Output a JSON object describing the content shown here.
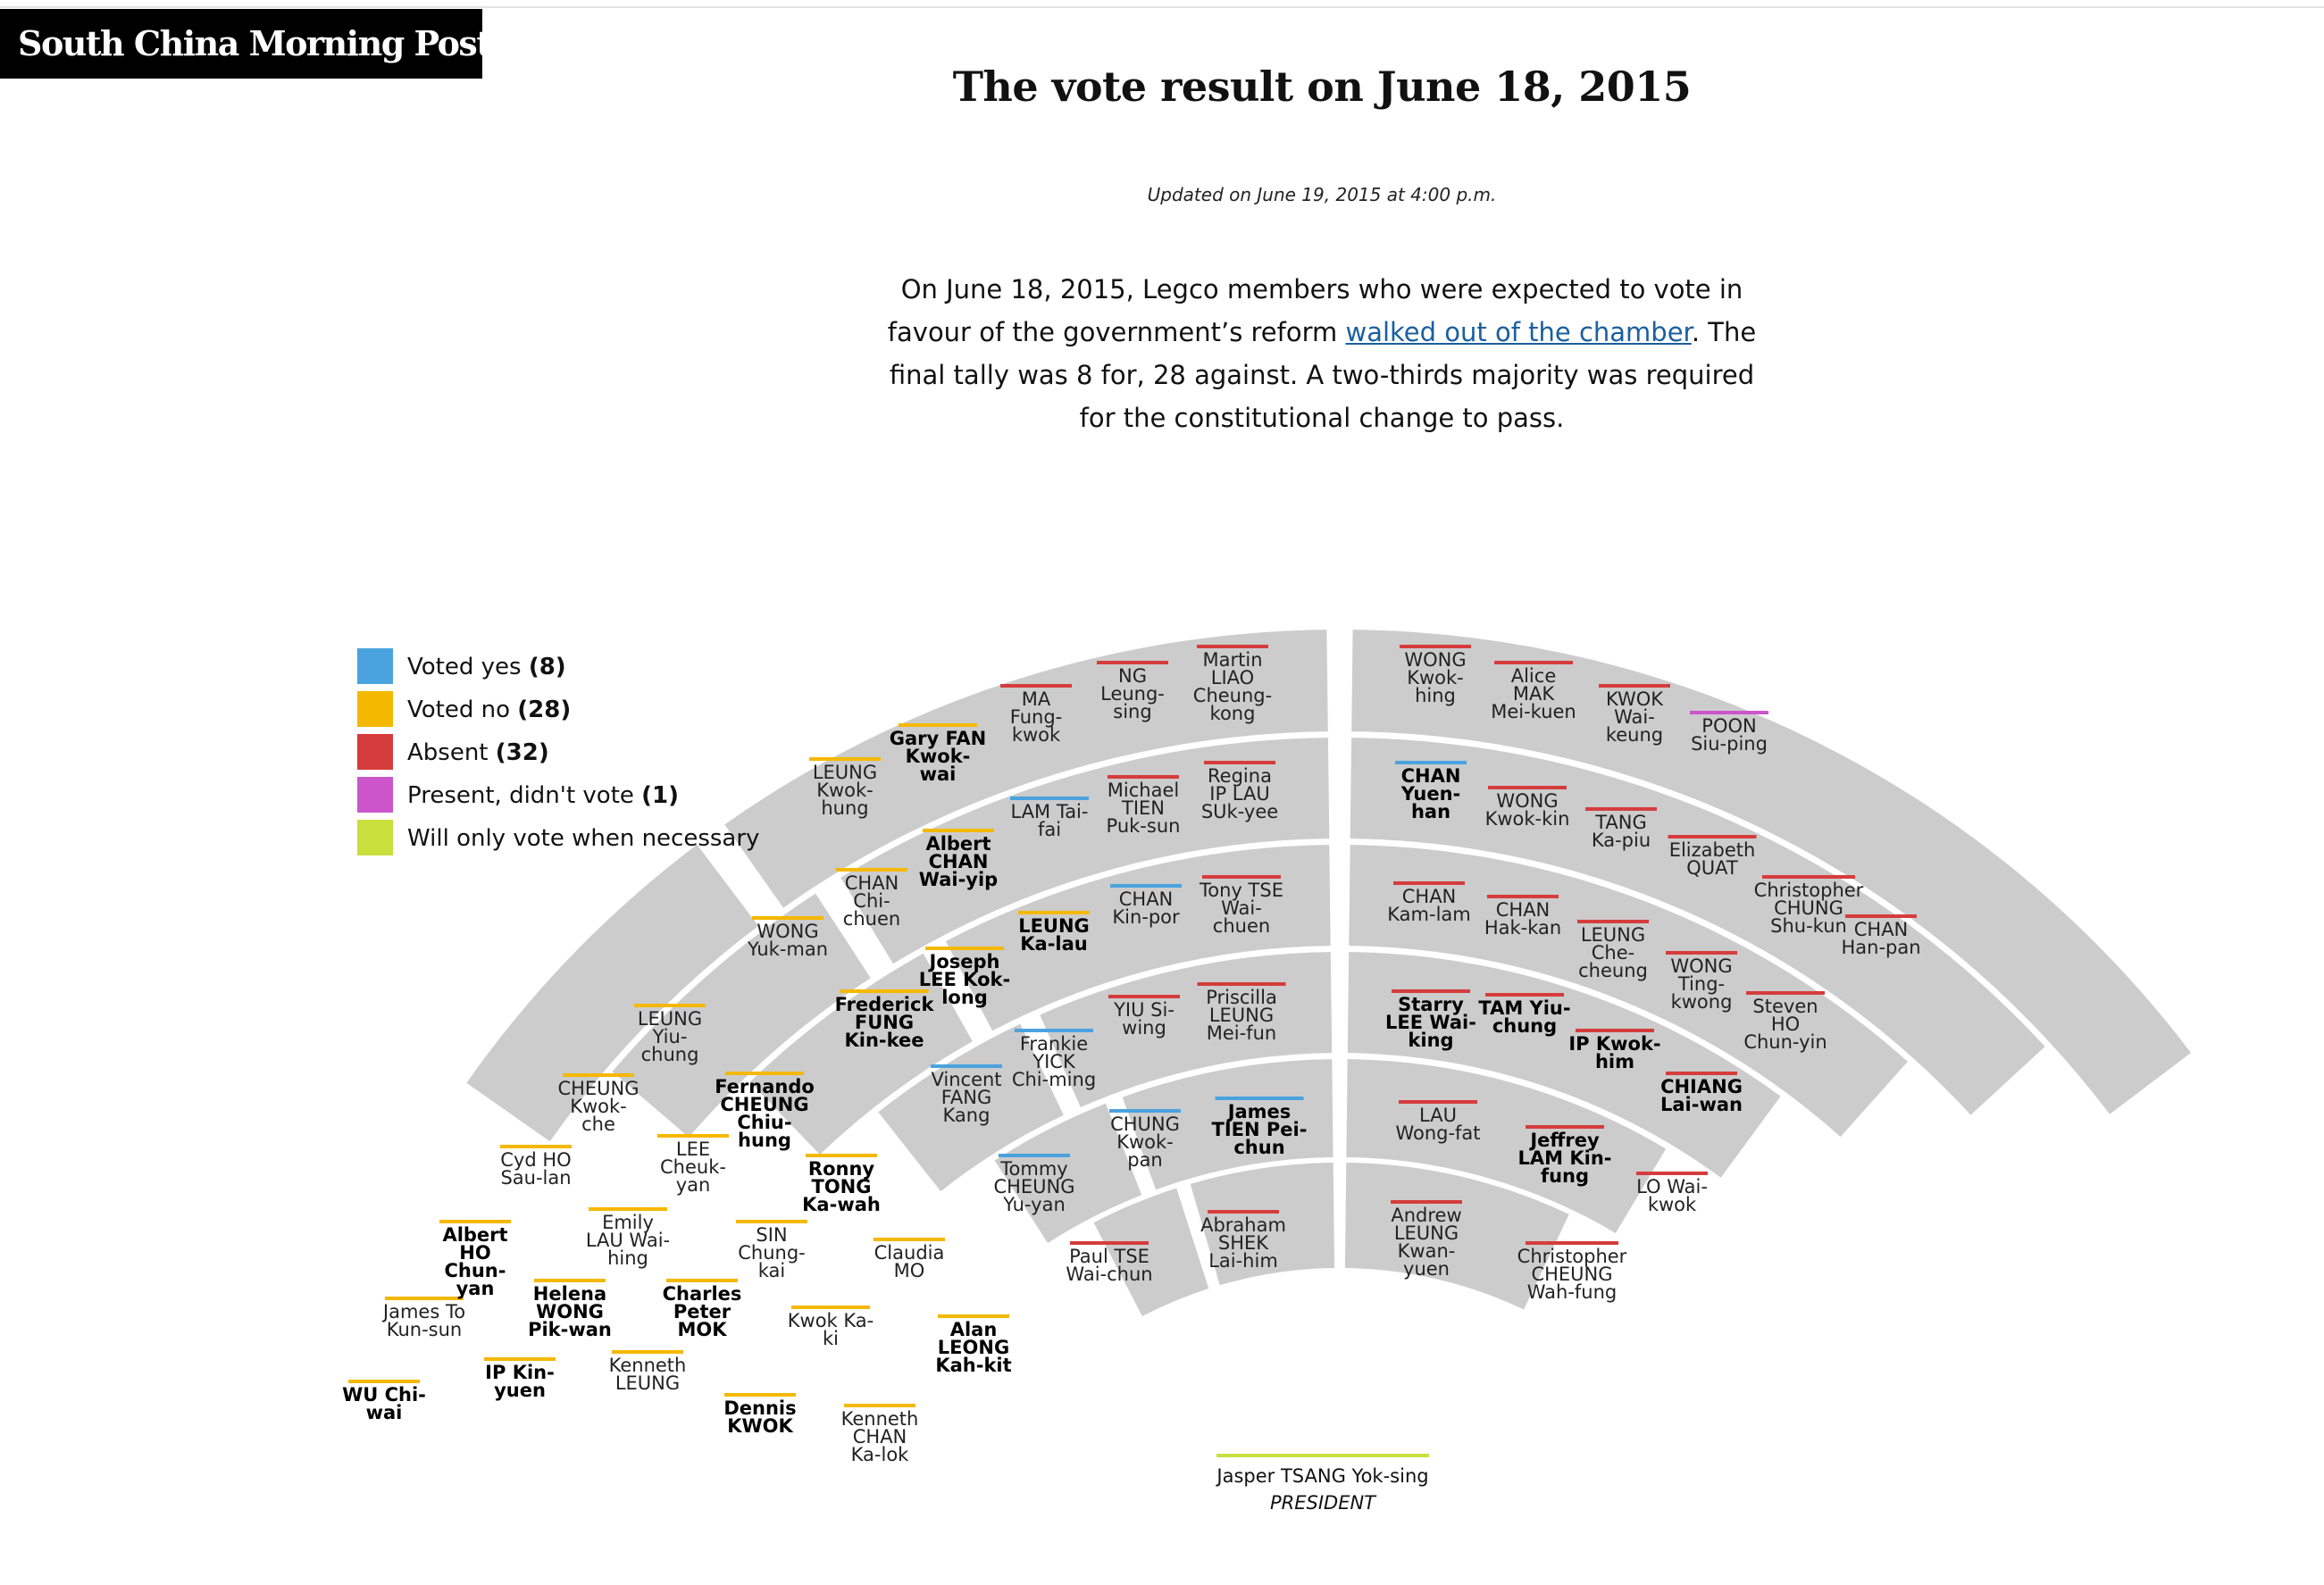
{
  "masthead": "South China Morning Post",
  "title": "The vote result on June 18, 2015",
  "updated": "Updated on June 19, 2015 at 4:00 p.m.",
  "intro": {
    "before": "On June 18, 2015, Legco members who were expected to vote in favour of the government’s reform ",
    "link": "walked out of the chamber",
    "after": ". The final tally was 8 for, 28 against. A two-thirds majority was required for the constitutional change to pass."
  },
  "colors": {
    "yes": "#4aa3df",
    "no": "#f5b800",
    "absent": "#d63c3c",
    "present": "#cc55cc",
    "necessary": "#c8e03c",
    "band": "#cccccc"
  },
  "legend": [
    {
      "label": "Voted yes",
      "count": "(8)",
      "status": "yes"
    },
    {
      "label": "Voted no",
      "count": "(28)",
      "status": "no"
    },
    {
      "label": "Absent",
      "count": "(32)",
      "status": "absent"
    },
    {
      "label": "Present, didn't vote",
      "count": "(1)",
      "status": "present"
    },
    {
      "label": "Will only vote when necessary",
      "count": "",
      "status": "necessary"
    }
  ],
  "president": {
    "name": "Jasper TSANG Yok-sing",
    "role": "PRESIDENT",
    "status": "necessary"
  },
  "members": [
    {
      "lines": [
        "WU Chi-",
        "wai"
      ],
      "status": "no",
      "bold": true
    },
    {
      "lines": [
        "James To",
        "Kun-sun"
      ],
      "status": "no",
      "bold": false
    },
    {
      "lines": [
        "Albert",
        "HO",
        "Chun-",
        "yan"
      ],
      "status": "no",
      "bold": true
    },
    {
      "lines": [
        "Cyd HO",
        "Sau-lan"
      ],
      "status": "no",
      "bold": false
    },
    {
      "lines": [
        "CHEUNG",
        "Kwok-",
        "che"
      ],
      "status": "no",
      "bold": false
    },
    {
      "lines": [
        "LEUNG",
        "Yiu-",
        "chung"
      ],
      "status": "no",
      "bold": false
    },
    {
      "lines": [
        "IP Kin-",
        "yuen"
      ],
      "status": "no",
      "bold": true
    },
    {
      "lines": [
        "Helena",
        "WONG",
        "Pik-wan"
      ],
      "status": "no",
      "bold": true
    },
    {
      "lines": [
        "Emily",
        "LAU Wai-",
        "hing"
      ],
      "status": "no",
      "bold": false
    },
    {
      "lines": [
        "LEE",
        "Cheuk-",
        "yan"
      ],
      "status": "no",
      "bold": false
    },
    {
      "lines": [
        "Fernando",
        "CHEUNG",
        "Chiu-",
        "hung"
      ],
      "status": "no",
      "bold": true
    },
    {
      "lines": [
        "Kenneth",
        "LEUNG"
      ],
      "status": "no",
      "bold": false
    },
    {
      "lines": [
        "Charles",
        "Peter",
        "MOK"
      ],
      "status": "no",
      "bold": true
    },
    {
      "lines": [
        "SIN",
        "Chung-",
        "kai"
      ],
      "status": "no",
      "bold": false
    },
    {
      "lines": [
        "Ronny",
        "TONG",
        "Ka-wah"
      ],
      "status": "no",
      "bold": true
    },
    {
      "lines": [
        "Dennis",
        "KWOK"
      ],
      "status": "no",
      "bold": true
    },
    {
      "lines": [
        "Kwok Ka-",
        "ki"
      ],
      "status": "no",
      "bold": false
    },
    {
      "lines": [
        "Claudia",
        "MO"
      ],
      "status": "no",
      "bold": false
    },
    {
      "lines": [
        "Kenneth",
        "CHAN",
        "Ka-lok"
      ],
      "status": "no",
      "bold": false
    },
    {
      "lines": [
        "Alan",
        "LEONG",
        "Kah-kit"
      ],
      "status": "no",
      "bold": true
    },
    {
      "lines": [
        "LEUNG",
        "Kwok-",
        "hung"
      ],
      "status": "no",
      "bold": false
    },
    {
      "lines": [
        "Gary FAN",
        "Kwok-",
        "wai"
      ],
      "status": "no",
      "bold": true
    },
    {
      "lines": [
        "MA",
        "Fung-",
        "kwok"
      ],
      "status": "absent",
      "bold": false
    },
    {
      "lines": [
        "NG",
        "Leung-",
        "sing"
      ],
      "status": "absent",
      "bold": false
    },
    {
      "lines": [
        "Martin",
        "LIAO",
        "Cheung-",
        "kong"
      ],
      "status": "absent",
      "bold": false
    },
    {
      "lines": [
        "Albert",
        "CHAN",
        "Wai-yip"
      ],
      "status": "no",
      "bold": true
    },
    {
      "lines": [
        "LAM Tai-",
        "fai"
      ],
      "status": "yes",
      "bold": false
    },
    {
      "lines": [
        "Michael",
        "TIEN",
        "Puk-sun"
      ],
      "status": "absent",
      "bold": false
    },
    {
      "lines": [
        "Regina",
        "IP LAU",
        "SUk-yee"
      ],
      "status": "absent",
      "bold": false
    },
    {
      "lines": [
        "WONG",
        "Yuk-man"
      ],
      "status": "no",
      "bold": false
    },
    {
      "lines": [
        "CHAN",
        "Chi-",
        "chuen"
      ],
      "status": "no",
      "bold": false
    },
    {
      "lines": [
        "LEUNG",
        "Ka-lau"
      ],
      "status": "no",
      "bold": true
    },
    {
      "lines": [
        "CHAN",
        "Kin-por"
      ],
      "status": "yes",
      "bold": false
    },
    {
      "lines": [
        "Tony TSE",
        "Wai-",
        "chuen"
      ],
      "status": "absent",
      "bold": false
    },
    {
      "lines": [
        "Frederick",
        "FUNG",
        "Kin-kee"
      ],
      "status": "no",
      "bold": true
    },
    {
      "lines": [
        "Joseph",
        "LEE Kok-",
        "long"
      ],
      "status": "no",
      "bold": true
    },
    {
      "lines": [
        "Frankie",
        "YICK",
        "Chi-ming"
      ],
      "status": "yes",
      "bold": false
    },
    {
      "lines": [
        "YIU Si-",
        "wing"
      ],
      "status": "absent",
      "bold": false
    },
    {
      "lines": [
        "Priscilla",
        "LEUNG",
        "Mei-fun"
      ],
      "status": "absent",
      "bold": false
    },
    {
      "lines": [
        "Vincent",
        "FANG",
        "Kang"
      ],
      "status": "yes",
      "bold": false
    },
    {
      "lines": [
        "CHUNG",
        "Kwok-",
        "pan"
      ],
      "status": "yes",
      "bold": false
    },
    {
      "lines": [
        "James",
        "TIEN Pei-",
        "chun"
      ],
      "status": "yes",
      "bold": true
    },
    {
      "lines": [
        "Tommy",
        "CHEUNG",
        "Yu-yan"
      ],
      "status": "yes",
      "bold": false
    },
    {
      "lines": [
        "Paul TSE",
        "Wai-chun"
      ],
      "status": "absent",
      "bold": false
    },
    {
      "lines": [
        "Abraham",
        "SHEK",
        "Lai-him"
      ],
      "status": "absent",
      "bold": false
    },
    {
      "lines": [
        "WONG",
        "Kwok-",
        "hing"
      ],
      "status": "absent",
      "bold": false
    },
    {
      "lines": [
        "Alice",
        "MAK",
        "Mei-kuen"
      ],
      "status": "absent",
      "bold": false
    },
    {
      "lines": [
        "KWOK",
        "Wai-",
        "keung"
      ],
      "status": "absent",
      "bold": false
    },
    {
      "lines": [
        "POON",
        "Siu-ping"
      ],
      "status": "present",
      "bold": false
    },
    {
      "lines": [
        "CHAN",
        "Yuen-",
        "han"
      ],
      "status": "yes",
      "bold": true
    },
    {
      "lines": [
        "WONG",
        "Kwok-kin"
      ],
      "status": "absent",
      "bold": false
    },
    {
      "lines": [
        "TANG",
        "Ka-piu"
      ],
      "status": "absent",
      "bold": false
    },
    {
      "lines": [
        "Elizabeth",
        "QUAT"
      ],
      "status": "absent",
      "bold": false
    },
    {
      "lines": [
        "Christopher",
        "CHUNG",
        "Shu-kun"
      ],
      "status": "absent",
      "bold": false
    },
    {
      "lines": [
        "CHAN",
        "Kam-lam"
      ],
      "status": "absent",
      "bold": false
    },
    {
      "lines": [
        "CHAN",
        "Hak-kan"
      ],
      "status": "absent",
      "bold": false
    },
    {
      "lines": [
        "LEUNG",
        "Che-",
        "cheung"
      ],
      "status": "absent",
      "bold": false
    },
    {
      "lines": [
        "WONG",
        "Ting-",
        "kwong"
      ],
      "status": "absent",
      "bold": false
    },
    {
      "lines": [
        "CHAN",
        "Han-pan"
      ],
      "status": "absent",
      "bold": false
    },
    {
      "lines": [
        "Starry",
        "LEE Wai-",
        "king"
      ],
      "status": "absent",
      "bold": true
    },
    {
      "lines": [
        "TAM Yiu-",
        "chung"
      ],
      "status": "absent",
      "bold": true
    },
    {
      "lines": [
        "IP Kwok-",
        "him"
      ],
      "status": "absent",
      "bold": true
    },
    {
      "lines": [
        "Steven",
        "HO",
        "Chun-yin"
      ],
      "status": "absent",
      "bold": false
    },
    {
      "lines": [
        "CHIANG",
        "Lai-wan"
      ],
      "status": "absent",
      "bold": true
    },
    {
      "lines": [
        "LAU",
        "Wong-fat"
      ],
      "status": "absent",
      "bold": false
    },
    {
      "lines": [
        "Jeffrey",
        "LAM Kin-",
        "fung"
      ],
      "status": "absent",
      "bold": true
    },
    {
      "lines": [
        "LO Wai-",
        "kwok"
      ],
      "status": "absent",
      "bold": false
    },
    {
      "lines": [
        "Andrew",
        "LEUNG",
        "Kwan-",
        "yuen"
      ],
      "status": "absent",
      "bold": false
    },
    {
      "lines": [
        "Christopher",
        "CHEUNG",
        "Wah-fung"
      ],
      "status": "absent",
      "bold": false
    }
  ]
}
